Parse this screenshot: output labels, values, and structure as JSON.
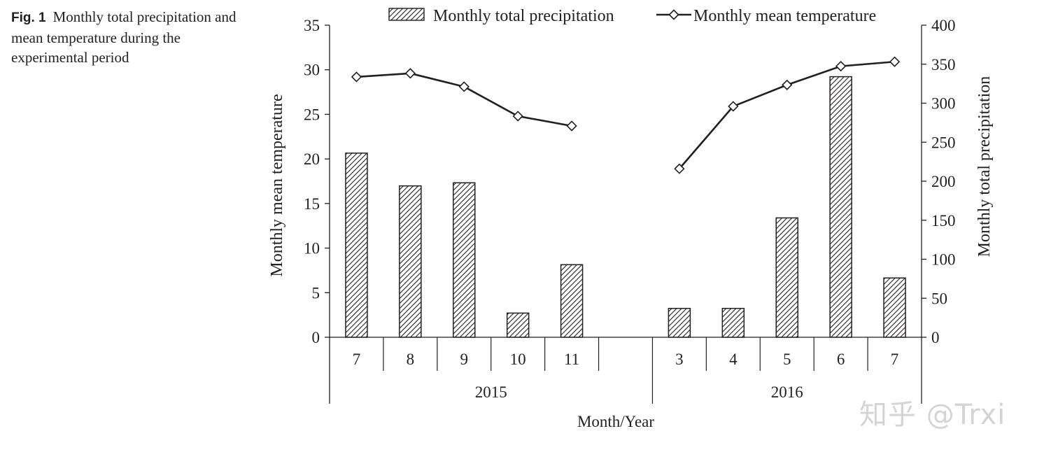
{
  "caption": {
    "label": "Fig. 1",
    "text": "Monthly total precipitation and mean temperature during the experimental period"
  },
  "watermark": "知乎 @Trxi",
  "chart_data": {
    "type": "bar+line",
    "categories": [
      "7",
      "8",
      "9",
      "10",
      "11",
      "",
      "3",
      "4",
      "5",
      "6",
      "7"
    ],
    "groups": [
      {
        "label": "2015",
        "start": 0,
        "end": 5
      },
      {
        "label": "2016",
        "start": 6,
        "end": 10
      }
    ],
    "series": [
      {
        "name": "Monthly total precipitation",
        "kind": "bar",
        "axis": "right",
        "values": [
          236,
          194,
          198,
          31,
          93,
          null,
          37,
          37,
          153,
          334,
          76
        ]
      },
      {
        "name": "Monthly mean temperature",
        "kind": "line",
        "axis": "left",
        "values": [
          29.2,
          29.6,
          28.1,
          24.8,
          23.7,
          null,
          18.9,
          25.9,
          28.3,
          30.4,
          30.9
        ]
      }
    ],
    "left_axis": {
      "label": "Monthly mean temperature",
      "min": 0,
      "max": 35,
      "ticks": [
        0,
        5,
        10,
        15,
        20,
        25,
        30,
        35
      ]
    },
    "right_axis": {
      "label": "Monthly total precipitation",
      "min": 0,
      "max": 400,
      "ticks": [
        0,
        50,
        100,
        150,
        200,
        250,
        300,
        350,
        400
      ]
    },
    "xlabel": "Month/Year",
    "legend_position": "top"
  }
}
